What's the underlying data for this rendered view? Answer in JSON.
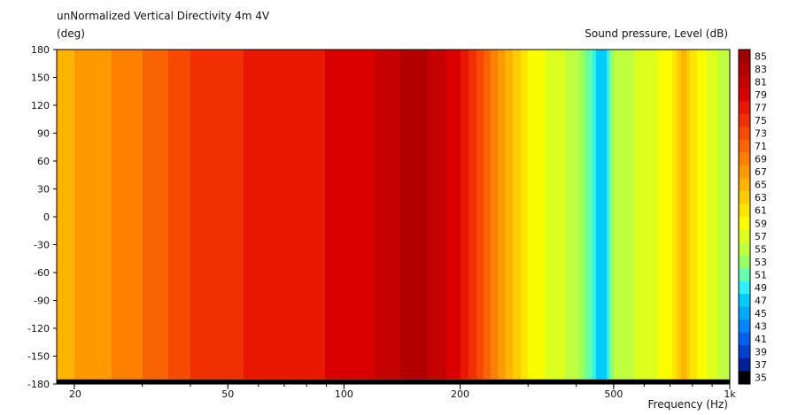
{
  "chart_data": {
    "type": "heatmap",
    "title": "unNormalized Vertical Directivity 4m 4V",
    "ylabel": "(deg)",
    "xlabel": "Frequency  (Hz)",
    "colorbar_label": "Sound pressure, Level  (dB)",
    "x_scale": "log",
    "xlim": [
      18,
      1000
    ],
    "ylim": [
      -180,
      180
    ],
    "x_ticks": [
      20,
      50,
      100,
      200,
      500,
      1000
    ],
    "x_tick_labels": [
      "20",
      "50",
      "100",
      "200",
      "500",
      "1k"
    ],
    "y_ticks": [
      180,
      150,
      120,
      90,
      60,
      30,
      0,
      -30,
      -60,
      -90,
      -120,
      -150,
      -180
    ],
    "y_tick_labels": [
      "180",
      "150",
      "120",
      "90",
      "60",
      "30",
      "0",
      "-30",
      "-60",
      "-90",
      "-120",
      "-150",
      "-180"
    ],
    "colorbar_levels": [
      85,
      83,
      81,
      79,
      77,
      75,
      73,
      71,
      69,
      67,
      65,
      63,
      61,
      59,
      57,
      55,
      53,
      51,
      49,
      47,
      45,
      43,
      41,
      39,
      37,
      35
    ],
    "colorbar_colors": [
      "#9e0000",
      "#b20000",
      "#c50000",
      "#d80000",
      "#e81800",
      "#f03000",
      "#f54a00",
      "#fa6400",
      "#fd8000",
      "#fe9a00",
      "#ffb400",
      "#ffcc00",
      "#ffe400",
      "#fafc00",
      "#ddff20",
      "#bfff40",
      "#99ff66",
      "#66ffb0",
      "#33f0ff",
      "#00ccff",
      "#00a8ff",
      "#0084ff",
      "#0060ee",
      "#0040cc",
      "#00209a",
      "#000000"
    ],
    "frequency_profile_db": [
      [
        18,
        66
      ],
      [
        20,
        67
      ],
      [
        25,
        69
      ],
      [
        30,
        71
      ],
      [
        35,
        73
      ],
      [
        40,
        75
      ],
      [
        50,
        76.5
      ],
      [
        60,
        77.5
      ],
      [
        80,
        78.5
      ],
      [
        100,
        79.5
      ],
      [
        120,
        81
      ],
      [
        140,
        83
      ],
      [
        150,
        84
      ],
      [
        160,
        83.5
      ],
      [
        180,
        81.5
      ],
      [
        200,
        79
      ],
      [
        220,
        75
      ],
      [
        250,
        69
      ],
      [
        280,
        64
      ],
      [
        300,
        61
      ],
      [
        350,
        58
      ],
      [
        400,
        56
      ],
      [
        440,
        51
      ],
      [
        460,
        47
      ],
      [
        480,
        49
      ],
      [
        500,
        55
      ],
      [
        600,
        58
      ],
      [
        700,
        60
      ],
      [
        760,
        66
      ],
      [
        800,
        62
      ],
      [
        900,
        58
      ],
      [
        1000,
        55
      ]
    ],
    "band_black_deg": [
      -180,
      -175
    ]
  }
}
